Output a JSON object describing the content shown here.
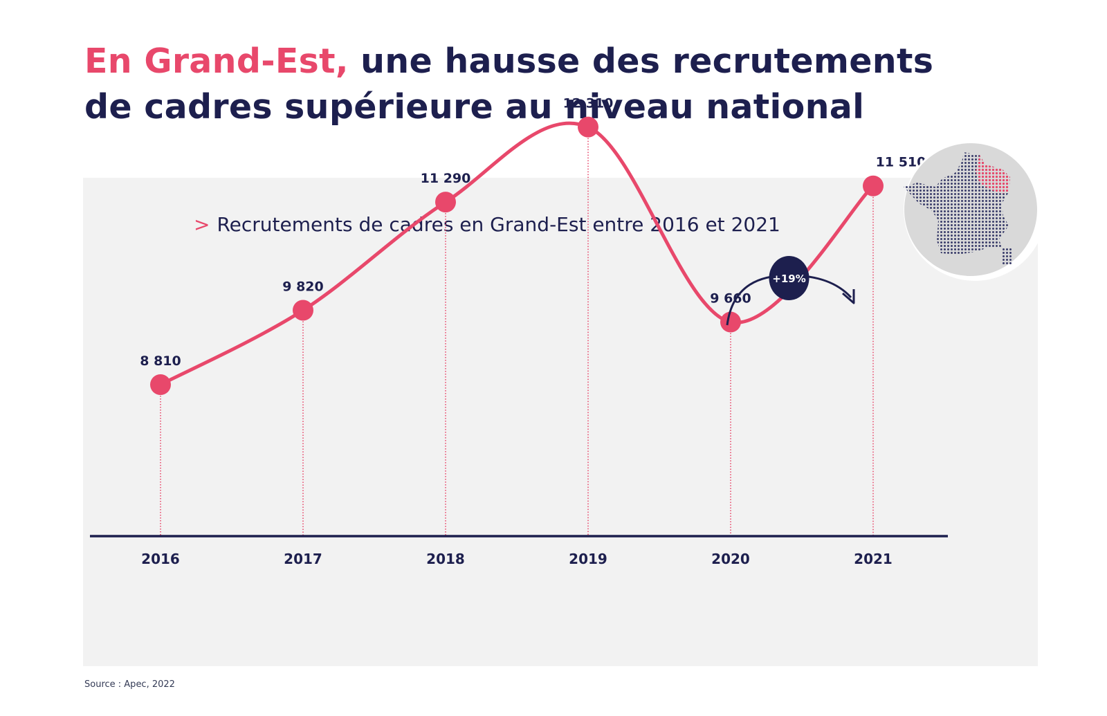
{
  "headline": {
    "accent": "En Grand-Est,",
    "rest": " une hausse des recrutements de cadres supérieure au niveau national"
  },
  "chart_data": {
    "type": "line",
    "title": "Recrutements de cadres en Grand-Est entre 2016 et 2021",
    "categories": [
      "2016",
      "2017",
      "2018",
      "2019",
      "2020",
      "2021"
    ],
    "values": [
      8810,
      9820,
      11290,
      12310,
      9660,
      11510
    ],
    "value_labels": [
      "8 810",
      "9 820",
      "11 290",
      "12 310",
      "9 660",
      "11 510"
    ],
    "xlabel": "",
    "ylabel": "",
    "grid": false,
    "annotation": {
      "text": "+19%",
      "from": "2020",
      "to": "2021"
    },
    "colors": {
      "line": "#e8486b",
      "axis": "#1d1f4e",
      "text": "#1d1f4e",
      "badge": "#1d1f4e"
    }
  },
  "subtitle_marker": ">",
  "source": "Source : Apec, 2022",
  "map_icon": "france-map-icon",
  "colors": {
    "accent": "#e8486b",
    "navy": "#1d1f4e",
    "panel": "#f2f2f2"
  }
}
